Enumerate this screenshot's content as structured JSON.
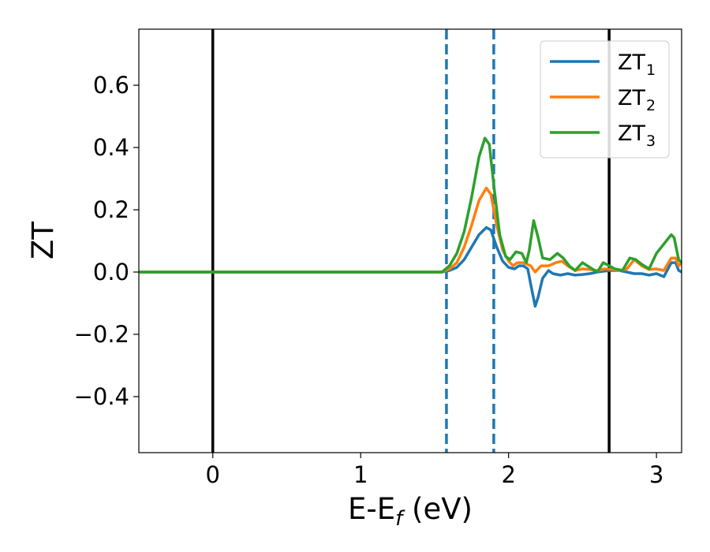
{
  "chart_data": {
    "type": "line",
    "xlabel": "E-E",
    "xlabel_sub": "f",
    "xlabel_unit": " (eV)",
    "ylabel": "ZT",
    "xlim": [
      -0.5,
      3.17
    ],
    "ylim": [
      -0.58,
      0.78
    ],
    "xticks": [
      0,
      1,
      2,
      3
    ],
    "xtick_labels": [
      "0",
      "1",
      "2",
      "3"
    ],
    "yticks": [
      0.6,
      0.4,
      0.2,
      0.0,
      -0.2,
      -0.4
    ],
    "ytick_labels": [
      "0.6",
      "0.4",
      "0.2",
      "0.0",
      "−0.2",
      "−0.4"
    ],
    "grid": false,
    "legend_position": "top-right",
    "vertical_lines": [
      {
        "x": 0.0,
        "style": "solid",
        "color": "#000000"
      },
      {
        "x": 2.68,
        "style": "solid",
        "color": "#000000"
      },
      {
        "x": 1.58,
        "style": "dashed",
        "color": "#1f77b4"
      },
      {
        "x": 1.9,
        "style": "dashed",
        "color": "#1f77b4"
      }
    ],
    "series": [
      {
        "name": "ZT",
        "name_sub": "1",
        "color": "#1f77b4",
        "points": [
          [
            -0.5,
            0
          ],
          [
            1.55,
            0
          ],
          [
            1.6,
            0.005
          ],
          [
            1.65,
            0.015
          ],
          [
            1.7,
            0.04
          ],
          [
            1.75,
            0.08
          ],
          [
            1.8,
            0.12
          ],
          [
            1.85,
            0.143
          ],
          [
            1.88,
            0.135
          ],
          [
            1.92,
            0.08
          ],
          [
            1.96,
            0.035
          ],
          [
            2.0,
            0.015
          ],
          [
            2.04,
            0.01
          ],
          [
            2.07,
            0.02
          ],
          [
            2.1,
            0.02
          ],
          [
            2.13,
            0.01
          ],
          [
            2.15,
            -0.04
          ],
          [
            2.18,
            -0.11
          ],
          [
            2.2,
            -0.08
          ],
          [
            2.23,
            -0.02
          ],
          [
            2.27,
            0.005
          ],
          [
            2.3,
            -0.005
          ],
          [
            2.35,
            -0.01
          ],
          [
            2.4,
            -0.005
          ],
          [
            2.45,
            -0.01
          ],
          [
            2.5,
            -0.008
          ],
          [
            2.55,
            -0.005
          ],
          [
            2.6,
            0.0
          ],
          [
            2.65,
            0.003
          ],
          [
            2.7,
            0.005
          ],
          [
            2.75,
            0.005
          ],
          [
            2.8,
            0.0
          ],
          [
            2.85,
            -0.005
          ],
          [
            2.9,
            -0.005
          ],
          [
            2.95,
            -0.01
          ],
          [
            3.0,
            -0.005
          ],
          [
            3.05,
            -0.015
          ],
          [
            3.1,
            0.03
          ],
          [
            3.13,
            0.03
          ],
          [
            3.15,
            0.005
          ],
          [
            3.17,
            0.0
          ]
        ]
      },
      {
        "name": "ZT",
        "name_sub": "2",
        "color": "#ff7f0e",
        "points": [
          [
            -0.5,
            0
          ],
          [
            1.55,
            0
          ],
          [
            1.6,
            0.01
          ],
          [
            1.65,
            0.03
          ],
          [
            1.7,
            0.08
          ],
          [
            1.75,
            0.15
          ],
          [
            1.8,
            0.23
          ],
          [
            1.85,
            0.27
          ],
          [
            1.88,
            0.25
          ],
          [
            1.92,
            0.15
          ],
          [
            1.96,
            0.07
          ],
          [
            2.0,
            0.035
          ],
          [
            2.03,
            0.02
          ],
          [
            2.06,
            0.03
          ],
          [
            2.1,
            0.03
          ],
          [
            2.15,
            0.02
          ],
          [
            2.18,
            0.0
          ],
          [
            2.22,
            0.02
          ],
          [
            2.27,
            0.02
          ],
          [
            2.32,
            0.03
          ],
          [
            2.36,
            0.035
          ],
          [
            2.4,
            0.02
          ],
          [
            2.45,
            0.005
          ],
          [
            2.5,
            0.01
          ],
          [
            2.55,
            0.008
          ],
          [
            2.6,
            0.005
          ],
          [
            2.65,
            0.01
          ],
          [
            2.7,
            0.008
          ],
          [
            2.75,
            0.005
          ],
          [
            2.8,
            0.01
          ],
          [
            2.85,
            0.04
          ],
          [
            2.9,
            0.02
          ],
          [
            2.95,
            0.008
          ],
          [
            3.0,
            0.01
          ],
          [
            3.05,
            0.005
          ],
          [
            3.1,
            0.045
          ],
          [
            3.13,
            0.045
          ],
          [
            3.15,
            0.02
          ],
          [
            3.17,
            0.03
          ]
        ]
      },
      {
        "name": "ZT",
        "name_sub": "3",
        "color": "#2ca02c",
        "points": [
          [
            -0.5,
            0
          ],
          [
            1.55,
            0
          ],
          [
            1.6,
            0.02
          ],
          [
            1.65,
            0.06
          ],
          [
            1.7,
            0.13
          ],
          [
            1.75,
            0.24
          ],
          [
            1.8,
            0.37
          ],
          [
            1.84,
            0.43
          ],
          [
            1.87,
            0.41
          ],
          [
            1.9,
            0.28
          ],
          [
            1.94,
            0.12
          ],
          [
            1.98,
            0.05
          ],
          [
            2.01,
            0.04
          ],
          [
            2.05,
            0.065
          ],
          [
            2.09,
            0.06
          ],
          [
            2.12,
            0.03
          ],
          [
            2.14,
            0.07
          ],
          [
            2.17,
            0.165
          ],
          [
            2.2,
            0.11
          ],
          [
            2.23,
            0.045
          ],
          [
            2.28,
            0.04
          ],
          [
            2.33,
            0.06
          ],
          [
            2.37,
            0.045
          ],
          [
            2.41,
            0.02
          ],
          [
            2.45,
            0.005
          ],
          [
            2.5,
            0.03
          ],
          [
            2.55,
            0.015
          ],
          [
            2.6,
            0.0
          ],
          [
            2.64,
            0.03
          ],
          [
            2.68,
            0.02
          ],
          [
            2.72,
            0.01
          ],
          [
            2.77,
            0.005
          ],
          [
            2.82,
            0.045
          ],
          [
            2.86,
            0.04
          ],
          [
            2.9,
            0.025
          ],
          [
            2.95,
            0.01
          ],
          [
            3.0,
            0.06
          ],
          [
            3.05,
            0.09
          ],
          [
            3.1,
            0.12
          ],
          [
            3.12,
            0.11
          ],
          [
            3.15,
            0.04
          ],
          [
            3.17,
            0.03
          ]
        ]
      }
    ]
  }
}
